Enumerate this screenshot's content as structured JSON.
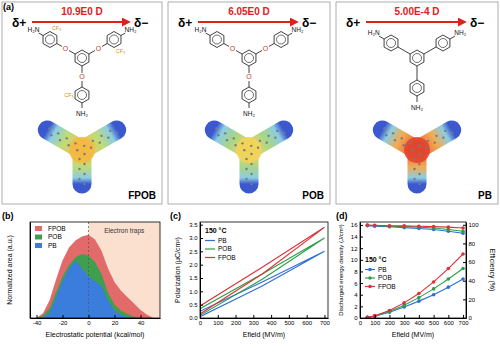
{
  "diagram": {
    "label": "(a)",
    "delta_plus": "δ+",
    "delta_minus": "δ−",
    "molecules": [
      {
        "name": "FPOB",
        "dipole": "10.9E0 D",
        "linker": "O",
        "substituent": "CF₃",
        "end_group_left": "H₂N",
        "end_group": "NH₂"
      },
      {
        "name": "POB",
        "dipole": "6.05E0 D",
        "linker": "O",
        "end_group_left": "H₂N",
        "end_group": "NH₂"
      },
      {
        "name": "PB",
        "dipole": "5.00E-4 D",
        "end_group_left": "H₂N",
        "end_group": "NH₂"
      }
    ]
  },
  "chart_data": [
    {
      "type": "area",
      "label": "(b)",
      "xlabel": "Electrostatic potential (kcal/mol)",
      "ylabel": "Normalized area (a.u.)",
      "x": [
        -40,
        -35,
        -30,
        -25,
        -20,
        -15,
        -10,
        -5,
        0,
        5,
        10,
        15,
        20,
        25,
        30,
        35,
        40,
        45,
        50
      ],
      "series": [
        {
          "name": "FPOB",
          "color": "#e26a6a",
          "values": [
            0,
            6,
            22,
            48,
            72,
            88,
            97,
            102,
            104,
            98,
            84,
            62,
            45,
            34,
            26,
            18,
            10,
            4,
            0
          ]
        },
        {
          "name": "POB",
          "color": "#3f9f4f",
          "values": [
            0,
            3,
            12,
            32,
            52,
            66,
            76,
            80,
            78,
            70,
            55,
            32,
            17,
            9,
            5,
            2,
            1,
            0,
            0
          ]
        },
        {
          "name": "PB",
          "color": "#3b7ddd",
          "values": [
            0,
            1,
            6,
            26,
            46,
            62,
            72,
            62,
            52,
            46,
            40,
            22,
            9,
            4,
            1,
            0,
            0,
            0,
            0
          ]
        }
      ],
      "xlim": [
        -45,
        55
      ],
      "ylim": [
        0,
        120
      ],
      "xticks": [
        -40,
        -20,
        0,
        20,
        40
      ],
      "tick_labels": "x",
      "legend": "top-left",
      "annotations": [
        {
          "text": "Electron traps",
          "x_start": 0,
          "x_end": 55
        }
      ]
    },
    {
      "type": "line",
      "label": "(c)",
      "title": "150 °C",
      "xlabel": "Efield (MV/m)",
      "ylabel": "Polarization (μC/cm²)",
      "series": [
        {
          "name": "PB",
          "color": "#2f6fd6",
          "x": [
            0,
            350,
            700,
            350,
            0
          ],
          "values": [
            0.05,
            1.2,
            2.5,
            1.35,
            0.25
          ]
        },
        {
          "name": "POB",
          "color": "#2e9e48",
          "x": [
            0,
            350,
            700,
            350,
            0
          ],
          "values": [
            0.1,
            1.45,
            3.0,
            1.65,
            0.35
          ]
        },
        {
          "name": "FPOB",
          "color": "#d9343a",
          "x": [
            0,
            350,
            700,
            350,
            0
          ],
          "values": [
            0.15,
            1.65,
            3.4,
            1.9,
            0.45
          ]
        }
      ],
      "xlim": [
        0,
        720
      ],
      "ylim": [
        0,
        3.6
      ],
      "xticks": [
        0,
        100,
        200,
        300,
        400,
        500,
        600,
        700
      ],
      "yticks": [
        {
          "value": 0,
          "label": "0.0"
        },
        0.5,
        {
          "value": 1,
          "label": "1.0"
        },
        1.5,
        {
          "value": 2,
          "label": "2.0"
        },
        2.5,
        {
          "value": 3,
          "label": "3.0"
        },
        3.5
      ],
      "legend": "top-left"
    },
    {
      "type": "line",
      "label": "(d)",
      "title": "150 °C",
      "xlabel": "Efield (MV/m)",
      "ylabel": "Discharged energy density (J/cm³)",
      "y2label": "Efficiency (%)",
      "x": [
        50,
        100,
        200,
        300,
        400,
        500,
        600,
        700
      ],
      "series": [
        {
          "name": "PB",
          "color": "#2f6fd6",
          "values": [
            0.1,
            0.3,
            1.0,
            1.9,
            2.9,
            4.0,
            5.3,
            6.7
          ]
        },
        {
          "name": "POB",
          "color": "#2e9e48",
          "values": [
            0.1,
            0.35,
            1.1,
            2.2,
            3.5,
            5.0,
            6.7,
            8.5
          ]
        },
        {
          "name": "FPOB",
          "color": "#d9343a",
          "values": [
            0.1,
            0.4,
            1.3,
            2.6,
            4.2,
            6.2,
            8.5,
            11.0
          ]
        },
        {
          "name": "PB",
          "color": "#2f6fd6",
          "axis": "y2",
          "values": [
            99,
            98.5,
            98,
            97,
            96,
            95,
            93,
            91
          ]
        },
        {
          "name": "POB",
          "color": "#2e9e48",
          "axis": "y2",
          "values": [
            99.5,
            99,
            98.5,
            98,
            97.5,
            96.5,
            95,
            93
          ]
        },
        {
          "name": "FPOB",
          "color": "#d9343a",
          "axis": "y2",
          "values": [
            99.8,
            99.5,
            99,
            98.8,
            98.5,
            98,
            97.5,
            96.5
          ]
        }
      ],
      "xlim": [
        0,
        720
      ],
      "ylim": [
        0,
        16.5
      ],
      "y2lim": [
        0,
        103
      ],
      "xticks": [
        0,
        100,
        200,
        300,
        400,
        500,
        600,
        700
      ],
      "yticks": [
        0,
        2,
        4,
        6,
        8,
        10,
        12,
        14,
        16
      ],
      "y2ticks": [
        0,
        20,
        40,
        60,
        80,
        100
      ],
      "marker": "circle",
      "legend": "top-left"
    }
  ]
}
